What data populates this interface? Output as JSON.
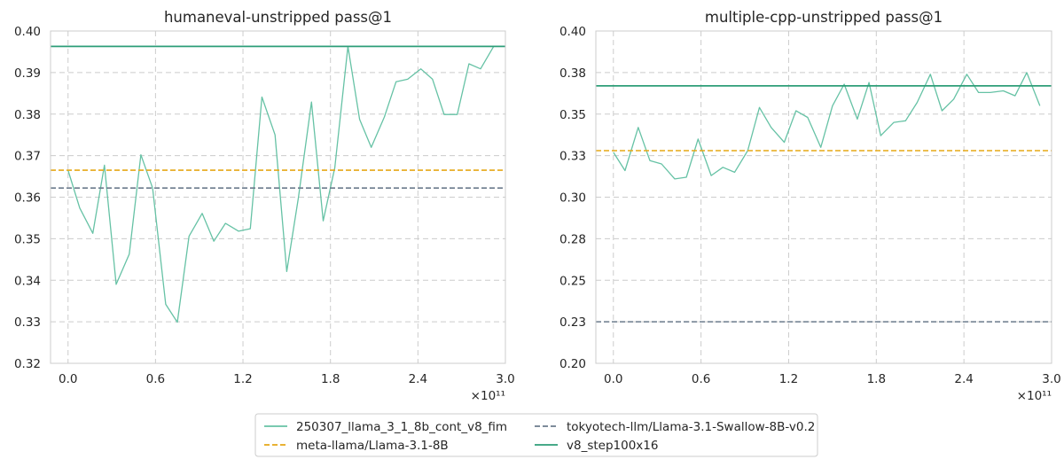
{
  "legend": {
    "placement": "bottom-center",
    "entries": [
      {
        "label": "250307_llama_3_1_8b_cont_v8_fim",
        "color": "#66c2a5",
        "style": "solid"
      },
      {
        "label": "tokyotech-llm/Llama-3.1-Swallow-8B-v0.2",
        "color": "#6b7b8c",
        "style": "dashed"
      },
      {
        "label": "meta-llama/Llama-3.1-8B",
        "color": "#e6a817",
        "style": "dashed"
      },
      {
        "label": "v8_step100x16",
        "color": "#2e9e78",
        "style": "solid"
      }
    ]
  },
  "chart_data": [
    {
      "type": "line",
      "title": "humaneval-unstripped pass@1",
      "xlabel": "",
      "ylabel": "",
      "x_multiplier_label": "×10¹¹",
      "xlim": [
        -0.12,
        3.0
      ],
      "ylim": [
        0.32,
        0.4
      ],
      "xticks": [
        0.0,
        0.6,
        1.2,
        1.8,
        2.4,
        3.0
      ],
      "xtick_labels": [
        "0.0",
        "0.6",
        "1.2",
        "1.8",
        "2.4",
        "3.0"
      ],
      "yticks": [
        0.32,
        0.33,
        0.34,
        0.35,
        0.36,
        0.37,
        0.38,
        0.39,
        0.4
      ],
      "ytick_labels": [
        "0.32",
        "0.33",
        "0.34",
        "0.35",
        "0.36",
        "0.37",
        "0.38",
        "0.39",
        "0.40"
      ],
      "grid": true,
      "series": [
        {
          "legend_index": 0,
          "kind": "line",
          "x": [
            0.0,
            0.08,
            0.17,
            0.25,
            0.33,
            0.42,
            0.5,
            0.58,
            0.67,
            0.75,
            0.83,
            0.92,
            1.0,
            1.08,
            1.17,
            1.25,
            1.33,
            1.42,
            1.5,
            1.58,
            1.67,
            1.75,
            1.83,
            1.92,
            2.0,
            2.08,
            2.17,
            2.25,
            2.33,
            2.42,
            2.5,
            2.58,
            2.67,
            2.75,
            2.83,
            2.92
          ],
          "y": [
            0.3665,
            0.3574,
            0.3513,
            0.3677,
            0.339,
            0.3463,
            0.3702,
            0.3622,
            0.3342,
            0.3299,
            0.3506,
            0.3561,
            0.3494,
            0.3537,
            0.3518,
            0.3524,
            0.3841,
            0.375,
            0.3421,
            0.3598,
            0.3829,
            0.3543,
            0.3671,
            0.3963,
            0.3787,
            0.372,
            0.3793,
            0.3878,
            0.3884,
            0.3909,
            0.3884,
            0.3799,
            0.3799,
            0.3921,
            0.3909,
            0.3963
          ]
        },
        {
          "legend_index": 2,
          "kind": "hline",
          "y": 0.3665
        },
        {
          "legend_index": 1,
          "kind": "hline",
          "y": 0.3622
        },
        {
          "legend_index": 3,
          "kind": "hline",
          "y": 0.3963
        }
      ]
    },
    {
      "type": "line",
      "title": "multiple-cpp-unstripped pass@1",
      "xlabel": "",
      "ylabel": "",
      "x_multiplier_label": "×10¹¹",
      "xlim": [
        -0.12,
        3.0
      ],
      "ylim": [
        0.2,
        0.4
      ],
      "xticks": [
        0.0,
        0.6,
        1.2,
        1.8,
        2.4,
        3.0
      ],
      "xtick_labels": [
        "0.0",
        "0.6",
        "1.2",
        "1.8",
        "2.4",
        "3.0"
      ],
      "yticks": [
        0.2,
        0.225,
        0.25,
        0.275,
        0.3,
        0.325,
        0.35,
        0.375,
        0.4
      ],
      "ytick_labels": [
        "0.20",
        "0.23",
        "0.25",
        "0.28",
        "0.30",
        "0.33",
        "0.35",
        "0.38",
        "0.40"
      ],
      "grid": true,
      "series": [
        {
          "legend_index": 0,
          "kind": "line",
          "x": [
            0.0,
            0.08,
            0.17,
            0.25,
            0.33,
            0.42,
            0.5,
            0.58,
            0.67,
            0.75,
            0.83,
            0.92,
            1.0,
            1.08,
            1.17,
            1.25,
            1.33,
            1.42,
            1.5,
            1.58,
            1.67,
            1.75,
            1.83,
            1.92,
            2.0,
            2.08,
            2.17,
            2.25,
            2.33,
            2.42,
            2.5,
            2.58,
            2.67,
            2.75,
            2.83,
            2.92
          ],
          "y": [
            0.327,
            0.316,
            0.342,
            0.322,
            0.32,
            0.311,
            0.312,
            0.335,
            0.313,
            0.318,
            0.315,
            0.328,
            0.354,
            0.342,
            0.333,
            0.352,
            0.348,
            0.33,
            0.355,
            0.368,
            0.347,
            0.369,
            0.337,
            0.345,
            0.346,
            0.357,
            0.374,
            0.352,
            0.359,
            0.374,
            0.363,
            0.363,
            0.364,
            0.361,
            0.375,
            0.355
          ]
        },
        {
          "legend_index": 2,
          "kind": "hline",
          "y": 0.328
        },
        {
          "legend_index": 1,
          "kind": "hline",
          "y": 0.225
        },
        {
          "legend_index": 3,
          "kind": "hline",
          "y": 0.367
        }
      ]
    }
  ]
}
